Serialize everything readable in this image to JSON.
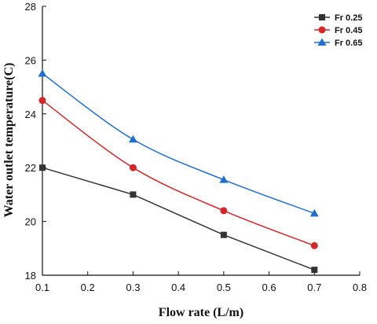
{
  "chart_data": {
    "type": "line",
    "xlabel": "Flow rate (L/m)",
    "ylabel": "Water outlet temperature(C)",
    "xlim": [
      0.1,
      0.8
    ],
    "ylim": [
      18,
      28
    ],
    "xticks": [
      "0.1",
      "0.2",
      "0.3",
      "0.4",
      "0.5",
      "0.6",
      "0.7",
      "0.8"
    ],
    "yticks": [
      "18",
      "20",
      "22",
      "24",
      "26",
      "28"
    ],
    "grid": false,
    "legend_position": "top-right",
    "x": [
      0.1,
      0.3,
      0.5,
      0.7
    ],
    "series": [
      {
        "name": "Fr 0.25",
        "values": [
          22.0,
          21.0,
          19.5,
          18.2
        ],
        "color": "#333333",
        "marker": "square"
      },
      {
        "name": "Fr 0.45",
        "values": [
          24.5,
          22.0,
          20.4,
          19.1
        ],
        "color": "#d62728",
        "marker": "circle"
      },
      {
        "name": "Fr 0.65",
        "values": [
          25.5,
          23.05,
          21.55,
          20.3
        ],
        "color": "#1f6fd1",
        "marker": "triangle"
      }
    ]
  }
}
